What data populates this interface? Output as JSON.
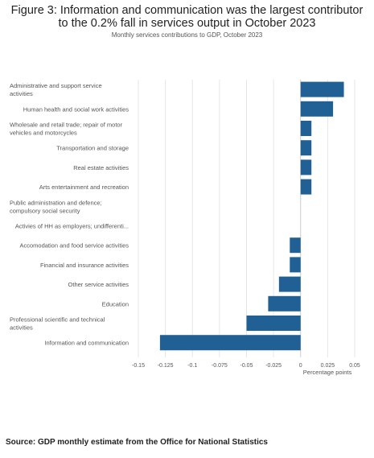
{
  "title": "Figure 3: Information and communication was the largest contributor to the 0.2% fall in services output in October 2023",
  "subtitle": "Monthly services contributions to GDP, October 2023",
  "source": "Source: GDP monthly estimate from the Office for National Statistics",
  "colors": {
    "bar": "#206095",
    "grid": "#e6e6e6",
    "axis": "#cccccc",
    "label": "#555555"
  },
  "chart_data": {
    "type": "bar",
    "orientation": "horizontal",
    "title": "Figure 3: Information and communication was the largest contributor to the 0.2% fall in services output in October 2023",
    "subtitle": "Monthly services contributions to GDP, October 2023",
    "xlabel": "Percentage points",
    "ylabel": "",
    "xlim": [
      -0.15,
      0.05
    ],
    "xticks": [
      -0.15,
      -0.125,
      -0.1,
      -0.075,
      -0.05,
      -0.025,
      0,
      0.025,
      0.05
    ],
    "xtick_labels": [
      "-0.15",
      "-0.125",
      "-0.1",
      "-0.075",
      "-0.05",
      "-0.025",
      "0",
      "0.025",
      "0.05"
    ],
    "grid": true,
    "categories": [
      [
        "Administrative and support service",
        "activities"
      ],
      [
        "Human health and social work activities"
      ],
      [
        "Wholesale and retail trade; repair of motor",
        "vehicles and motorcycles"
      ],
      [
        "Transportation and storage"
      ],
      [
        "Real estate activities"
      ],
      [
        "Arts entertainment and recreation"
      ],
      [
        "Public administration and defence;",
        "compulsory social security"
      ],
      [
        "Activies of HH as employers; undifferenti..."
      ],
      [
        "Accomodation and food service activities"
      ],
      [
        "Financial and insurance activities"
      ],
      [
        "Other service activities"
      ],
      [
        "Education"
      ],
      [
        "Professional scientific and technical",
        "activities"
      ],
      [
        "Information and communication"
      ]
    ],
    "values": [
      0.04,
      0.03,
      0.01,
      0.01,
      0.01,
      0.01,
      0,
      0,
      -0.01,
      -0.01,
      -0.02,
      -0.03,
      -0.05,
      -0.13
    ]
  }
}
